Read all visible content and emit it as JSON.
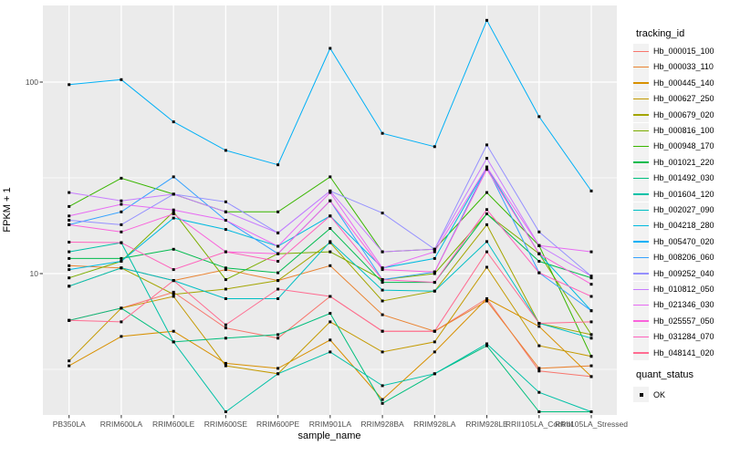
{
  "chart_data": {
    "type": "line",
    "title": "",
    "xlabel": "sample_name",
    "ylabel": "FPKM + 1",
    "x_categories": [
      "PB350LA",
      "RRIM600LA",
      "RRIM600LE",
      "RRIM600SE",
      "RRIM600PE",
      "RRIM901LA",
      "RRIM928BA",
      "RRIM928LA",
      "RRIM928LE",
      "RRII105LA_Control",
      "RRII105LA_Stressed"
    ],
    "y_scale": "log10",
    "y_ticks": [
      {
        "label": "100",
        "value": 100
      },
      {
        "label": "10",
        "value": 10
      }
    ],
    "y_minor_gridlines": [
      31.62,
      3.162
    ],
    "ylim": [
      1.6,
      251
    ],
    "panel_bg": "#EBEBEB",
    "grid_color": "#FFFFFF",
    "marker": {
      "shape": "square",
      "color": "#000000"
    },
    "series": [
      {
        "name": "Hb_000015_100",
        "color": "#F8766D",
        "values": [
          5.7,
          6.6,
          8.0,
          5.2,
          4.6,
          7.6,
          5.0,
          5.0,
          7.4,
          3.1,
          2.9
        ]
      },
      {
        "name": "Hb_000033_110",
        "color": "#EA8331",
        "values": [
          11,
          10.7,
          9.2,
          10.5,
          9.2,
          11,
          6.1,
          5.0,
          7.2,
          3.2,
          3.3
        ]
      },
      {
        "name": "Hb_000445_140",
        "color": "#D89000",
        "values": [
          3.3,
          4.7,
          5.0,
          3.4,
          3.2,
          4.5,
          2.2,
          3.9,
          7.4,
          5.3,
          2.9
        ]
      },
      {
        "name": "Hb_000627_250",
        "color": "#C49A00",
        "values": [
          3.5,
          6.6,
          7.6,
          3.3,
          3.0,
          5.6,
          3.9,
          4.4,
          10.8,
          4.2,
          3.7
        ]
      },
      {
        "name": "Hb_000679_020",
        "color": "#A3A500",
        "values": [
          8.6,
          10.7,
          7.8,
          8.3,
          9.2,
          14.5,
          7.2,
          8.1,
          18,
          5.5,
          4.8
        ]
      },
      {
        "name": "Hb_000816_100",
        "color": "#7CAE00",
        "values": [
          9.5,
          11.6,
          21,
          9.3,
          12.7,
          13,
          9.3,
          10,
          20.5,
          12.7,
          4.8
        ]
      },
      {
        "name": "Hb_000948_170",
        "color": "#39B600",
        "values": [
          22.4,
          31.5,
          26,
          21,
          21,
          32,
          13,
          13.4,
          26.5,
          14,
          3.7
        ]
      },
      {
        "name": "Hb_001021_220",
        "color": "#00BB4E",
        "values": [
          12,
          12,
          13.4,
          10.7,
          10.1,
          17.2,
          9.0,
          9.0,
          20.5,
          11.6,
          9.5
        ]
      },
      {
        "name": "Hb_001492_030",
        "color": "#00BF7D",
        "values": [
          5.7,
          6.6,
          4.4,
          4.6,
          4.8,
          6.2,
          2.1,
          3.0,
          4.2,
          1.9,
          1.9
        ]
      },
      {
        "name": "Hb_001604_120",
        "color": "#00C1A7",
        "values": [
          13,
          14.5,
          4.4,
          1.9,
          3.0,
          3.9,
          2.6,
          3.0,
          4.3,
          2.4,
          1.9
        ]
      },
      {
        "name": "Hb_002027_090",
        "color": "#00BFC4",
        "values": [
          8.6,
          10.7,
          9.2,
          7.4,
          7.4,
          14.7,
          8.2,
          8.1,
          14.7,
          5.5,
          4.6
        ]
      },
      {
        "name": "Hb_004218_280",
        "color": "#00BAE0",
        "values": [
          10.5,
          11.6,
          19.5,
          17,
          13.9,
          20,
          10.7,
          12,
          36,
          12.7,
          6.4
        ]
      },
      {
        "name": "Hb_005470_020",
        "color": "#00B0F6",
        "values": [
          97,
          103,
          62,
          44,
          37,
          150,
          54,
          46,
          210,
          66,
          27
        ]
      },
      {
        "name": "Hb_008206_060",
        "color": "#35A2FF",
        "values": [
          18,
          21,
          32,
          19,
          12.7,
          24,
          9.3,
          10.2,
          36,
          10.1,
          6.4
        ]
      },
      {
        "name": "Hb_009252_040",
        "color": "#9590FF",
        "values": [
          19,
          18,
          26,
          23.7,
          16.3,
          27,
          20.7,
          13.4,
          47,
          16.5,
          9.7
        ]
      },
      {
        "name": "Hb_010812_050",
        "color": "#C77CFF",
        "values": [
          26.5,
          24,
          26,
          21,
          16.3,
          27,
          13,
          13.4,
          40,
          14,
          9.7
        ]
      },
      {
        "name": "Hb_021346_030",
        "color": "#E76BF3",
        "values": [
          20,
          23,
          21.5,
          19,
          13.9,
          26.5,
          10.7,
          13,
          36,
          14,
          13
        ]
      },
      {
        "name": "Hb_025557_050",
        "color": "#FA62DB",
        "values": [
          18,
          16.5,
          20.5,
          13,
          12.7,
          24,
          10.5,
          10.2,
          35,
          12.7,
          8.8
        ]
      },
      {
        "name": "Hb_031284_070",
        "color": "#FF62BC",
        "values": [
          14.6,
          14.5,
          10.5,
          13,
          11.6,
          20,
          9.3,
          9.0,
          21.6,
          10.1,
          7.6
        ]
      },
      {
        "name": "Hb_048141_020",
        "color": "#FF6C91",
        "values": [
          5.7,
          5.6,
          9.2,
          5.4,
          8.3,
          7.6,
          5.0,
          5.0,
          13,
          5.5,
          5.6
        ]
      }
    ]
  },
  "legend": {
    "tracking_title": "tracking_id",
    "quant_title": "quant_status",
    "quant_items": [
      {
        "label": "OK",
        "marker": "black-square"
      }
    ]
  }
}
